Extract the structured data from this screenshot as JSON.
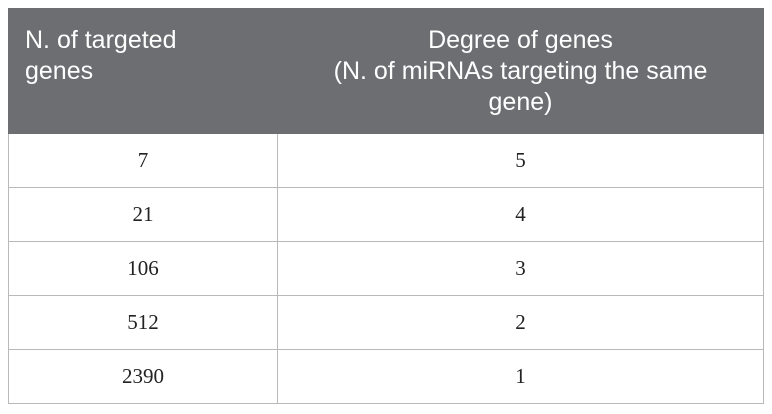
{
  "table": {
    "headers": {
      "col1_lines": [
        "N. of targeted",
        "genes"
      ],
      "col2_lines": [
        "Degree of genes",
        "(N. of miRNAs targeting the same",
        "gene)"
      ]
    },
    "rows": [
      {
        "targeted_genes": "7",
        "degree": "5"
      },
      {
        "targeted_genes": "21",
        "degree": "4"
      },
      {
        "targeted_genes": "106",
        "degree": "3"
      },
      {
        "targeted_genes": "512",
        "degree": "2"
      },
      {
        "targeted_genes": "2390",
        "degree": "1"
      }
    ]
  }
}
